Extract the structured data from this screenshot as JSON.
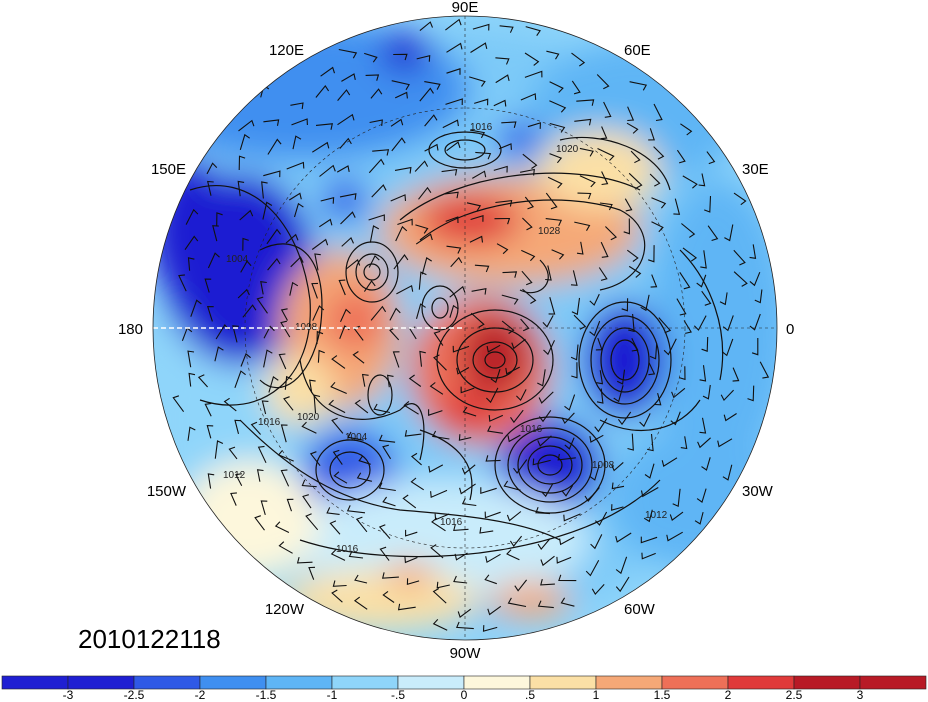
{
  "map": {
    "date_stamp": "2010122118",
    "longitude_labels": [
      {
        "text": "90E",
        "id": "lon-label-90e"
      },
      {
        "text": "60E",
        "id": "lon-label-60e"
      },
      {
        "text": "30E",
        "id": "lon-label-30e"
      },
      {
        "text": "0",
        "id": "lon-label-0"
      },
      {
        "text": "30W",
        "id": "lon-label-30w"
      },
      {
        "text": "60W",
        "id": "lon-label-60w"
      },
      {
        "text": "90W",
        "id": "lon-label-90w"
      },
      {
        "text": "120W",
        "id": "lon-label-120w"
      },
      {
        "text": "150W",
        "id": "lon-label-150w"
      },
      {
        "text": "180",
        "id": "lon-label-180"
      },
      {
        "text": "150E",
        "id": "lon-label-150e"
      },
      {
        "text": "120E",
        "id": "lon-label-120e"
      }
    ],
    "contour_labels": [
      "1016",
      "1020",
      "1028",
      "1004",
      "1008",
      "1020",
      "1016",
      "1004",
      "1016",
      "1008",
      "1012",
      "1016",
      "1016",
      "1012"
    ]
  },
  "colorbar": {
    "colors": [
      "#1f1fd2",
      "#2f59e6",
      "#3f8ff0",
      "#5fb5f5",
      "#8fd5fa",
      "#c9ecfb",
      "#fdf7dc",
      "#fbe0a6",
      "#f5a877",
      "#ee7058",
      "#e03a3a",
      "#b81a26"
    ],
    "tick_labels": [
      "-3",
      "-2.5",
      "-2",
      "-1.5",
      "-1",
      "-.5",
      "0",
      ".5",
      "1",
      "1.5",
      "2",
      "2.5",
      "3"
    ]
  }
}
